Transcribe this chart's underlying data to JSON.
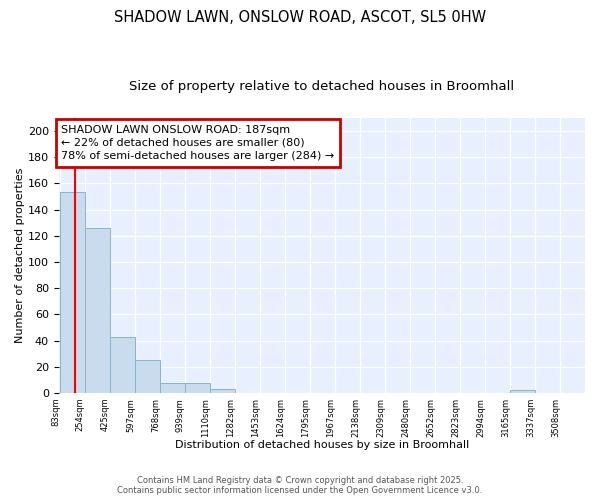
{
  "title1": "SHADOW LAWN, ONSLOW ROAD, ASCOT, SL5 0HW",
  "title2": "Size of property relative to detached houses in Broomhall",
  "xlabel": "Distribution of detached houses by size in Broomhall",
  "ylabel": "Number of detached properties",
  "bin_labels": [
    "83sqm",
    "254sqm",
    "425sqm",
    "597sqm",
    "768sqm",
    "939sqm",
    "1110sqm",
    "1282sqm",
    "1453sqm",
    "1624sqm",
    "1795sqm",
    "1967sqm",
    "2138sqm",
    "2309sqm",
    "2480sqm",
    "2652sqm",
    "2823sqm",
    "2994sqm",
    "3165sqm",
    "3337sqm",
    "3508sqm"
  ],
  "bar_values": [
    153,
    126,
    43,
    25,
    8,
    8,
    3,
    0,
    0,
    0,
    0,
    0,
    0,
    0,
    0,
    0,
    0,
    0,
    2,
    0,
    0
  ],
  "bar_color": "#c8dced",
  "bar_edge_color": "#8ab4cc",
  "ylim": [
    0,
    210
  ],
  "yticks": [
    0,
    20,
    40,
    60,
    80,
    100,
    120,
    140,
    160,
    180,
    200
  ],
  "red_line_x": 0.61,
  "annotation_text": "SHADOW LAWN ONSLOW ROAD: 187sqm\n← 22% of detached houses are smaller (80)\n78% of semi-detached houses are larger (284) →",
  "annotation_box_color": "#cc0000",
  "plot_bg_color": "#e8f0ff",
  "footer_text": "Contains HM Land Registry data © Crown copyright and database right 2025.\nContains public sector information licensed under the Open Government Licence v3.0.",
  "title_fontsize": 10.5,
  "subtitle_fontsize": 9.5,
  "annot_fontsize": 8,
  "footer_fontsize": 6,
  "ylabel_fontsize": 8,
  "xlabel_fontsize": 8
}
